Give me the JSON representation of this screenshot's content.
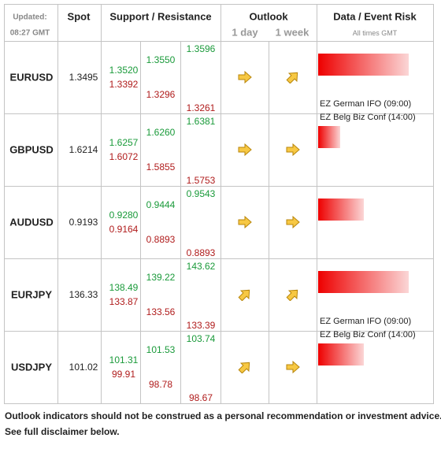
{
  "header": {
    "updated_label": "Updated:",
    "updated_time": "08:27 GMT",
    "spot": "Spot",
    "support_resistance": "Support / Resistance",
    "outlook": "Outlook",
    "outlook_1day": "1 day",
    "outlook_1week": "1 week",
    "data_event_risk": "Data / Event Risk",
    "times_note": "All times GMT"
  },
  "rows": [
    {
      "pair": "EURUSD",
      "spot": "1.3495",
      "levels": [
        [
          "1.3520",
          "1.3392"
        ],
        [
          "1.3550",
          "1.3296"
        ],
        [
          "1.3596",
          "1.3261"
        ]
      ],
      "events": [
        "EZ German IFO (09:00)",
        "EZ Belg Biz Conf (14:00)"
      ]
    },
    {
      "pair": "GBPUSD",
      "spot": "1.6214",
      "levels": [
        [
          "1.6257",
          "1.6072"
        ],
        [
          "1.6260",
          "1.5855"
        ],
        [
          "1.6381",
          "1.5753"
        ]
      ],
      "events": []
    },
    {
      "pair": "AUDUSD",
      "spot": "0.9193",
      "levels": [
        [
          "0.9280",
          "0.9164"
        ],
        [
          "0.9444",
          "0.8893"
        ],
        [
          "0.9543",
          "0.8893"
        ]
      ],
      "events": []
    },
    {
      "pair": "EURJPY",
      "spot": "136.33",
      "levels": [
        [
          "138.49",
          "133.87"
        ],
        [
          "139.22",
          "133.56"
        ],
        [
          "143.62",
          "133.39"
        ]
      ],
      "events": [
        "EZ German IFO (09:00)",
        "EZ Belg Biz Conf (14:00)"
      ]
    },
    {
      "pair": "USDJPY",
      "spot": "101.02",
      "levels": [
        [
          "101.31",
          "99.91"
        ],
        [
          "101.53",
          "98.78"
        ],
        [
          "103.74",
          "98.67"
        ]
      ],
      "events": []
    }
  ],
  "footer": [
    "Outlook indicators should not be construed as a personal recommendation or investment advice.",
    "See full disclaimer below."
  ]
}
